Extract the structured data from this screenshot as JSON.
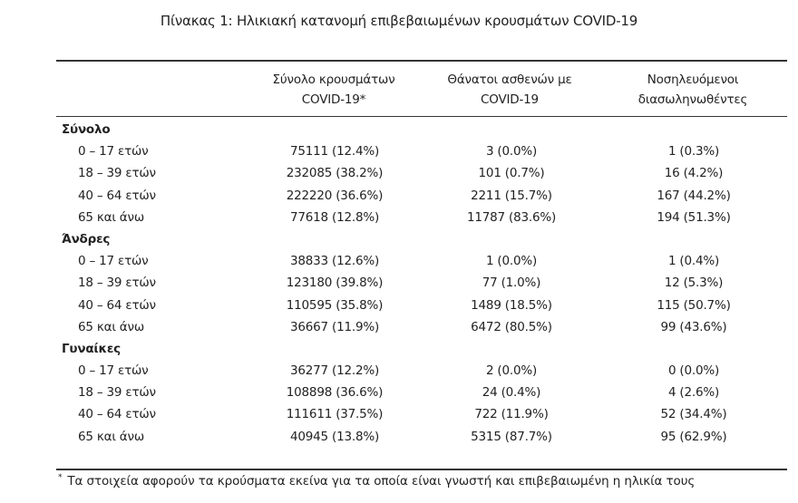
{
  "title": "Πίνακας 1: Ηλικιακή κατανομή επιβεβαιωμένων κρουσμάτων COVID-19",
  "headers": {
    "col1": [
      "Σύνολο κρουσμάτων",
      "COVID-19*"
    ],
    "col2": [
      "Θάνατοι ασθενών με",
      "COVID-19"
    ],
    "col3": [
      "Νοσηλευόμενοι",
      "διασωληνωθέντες"
    ]
  },
  "groups": [
    {
      "label": "Σύνολο",
      "rows": [
        {
          "age": "0 – 17 ετών",
          "cases": "75111 (12.4%)",
          "deaths": "3 (0.0%)",
          "intubated": "1 (0.3%)"
        },
        {
          "age": "18 – 39 ετών",
          "cases": "232085 (38.2%)",
          "deaths": "101 (0.7%)",
          "intubated": "16 (4.2%)"
        },
        {
          "age": "40 – 64 ετών",
          "cases": "222220 (36.6%)",
          "deaths": "2211 (15.7%)",
          "intubated": "167 (44.2%)"
        },
        {
          "age": "65 και άνω",
          "cases": "77618 (12.8%)",
          "deaths": "11787 (83.6%)",
          "intubated": "194 (51.3%)"
        }
      ]
    },
    {
      "label": "Άνδρες",
      "rows": [
        {
          "age": "0 – 17 ετών",
          "cases": "38833 (12.6%)",
          "deaths": "1 (0.0%)",
          "intubated": "1 (0.4%)"
        },
        {
          "age": "18 – 39 ετών",
          "cases": "123180 (39.8%)",
          "deaths": "77 (1.0%)",
          "intubated": "12 (5.3%)"
        },
        {
          "age": "40 – 64 ετών",
          "cases": "110595 (35.8%)",
          "deaths": "1489 (18.5%)",
          "intubated": "115 (50.7%)"
        },
        {
          "age": "65 και άνω",
          "cases": "36667 (11.9%)",
          "deaths": "6472 (80.5%)",
          "intubated": "99 (43.6%)"
        }
      ]
    },
    {
      "label": "Γυναίκες",
      "rows": [
        {
          "age": "0 – 17 ετών",
          "cases": "36277 (12.2%)",
          "deaths": "2 (0.0%)",
          "intubated": "0 (0.0%)"
        },
        {
          "age": "18 – 39 ετών",
          "cases": "108898 (36.6%)",
          "deaths": "24 (0.4%)",
          "intubated": "4 (2.6%)"
        },
        {
          "age": "40 – 64 ετών",
          "cases": "111611 (37.5%)",
          "deaths": "722 (11.9%)",
          "intubated": "52 (34.4%)"
        },
        {
          "age": "65 και άνω",
          "cases": "40945 (13.8%)",
          "deaths": "5315 (87.7%)",
          "intubated": "95 (62.9%)"
        }
      ]
    }
  ],
  "footnote": {
    "marker": "*",
    "text": "Τα στοιχεία αφορούν τα κρούσματα εκείνα για τα οποία είναι γνωστή και επιβεβαιωμένη η ηλικία τους"
  }
}
